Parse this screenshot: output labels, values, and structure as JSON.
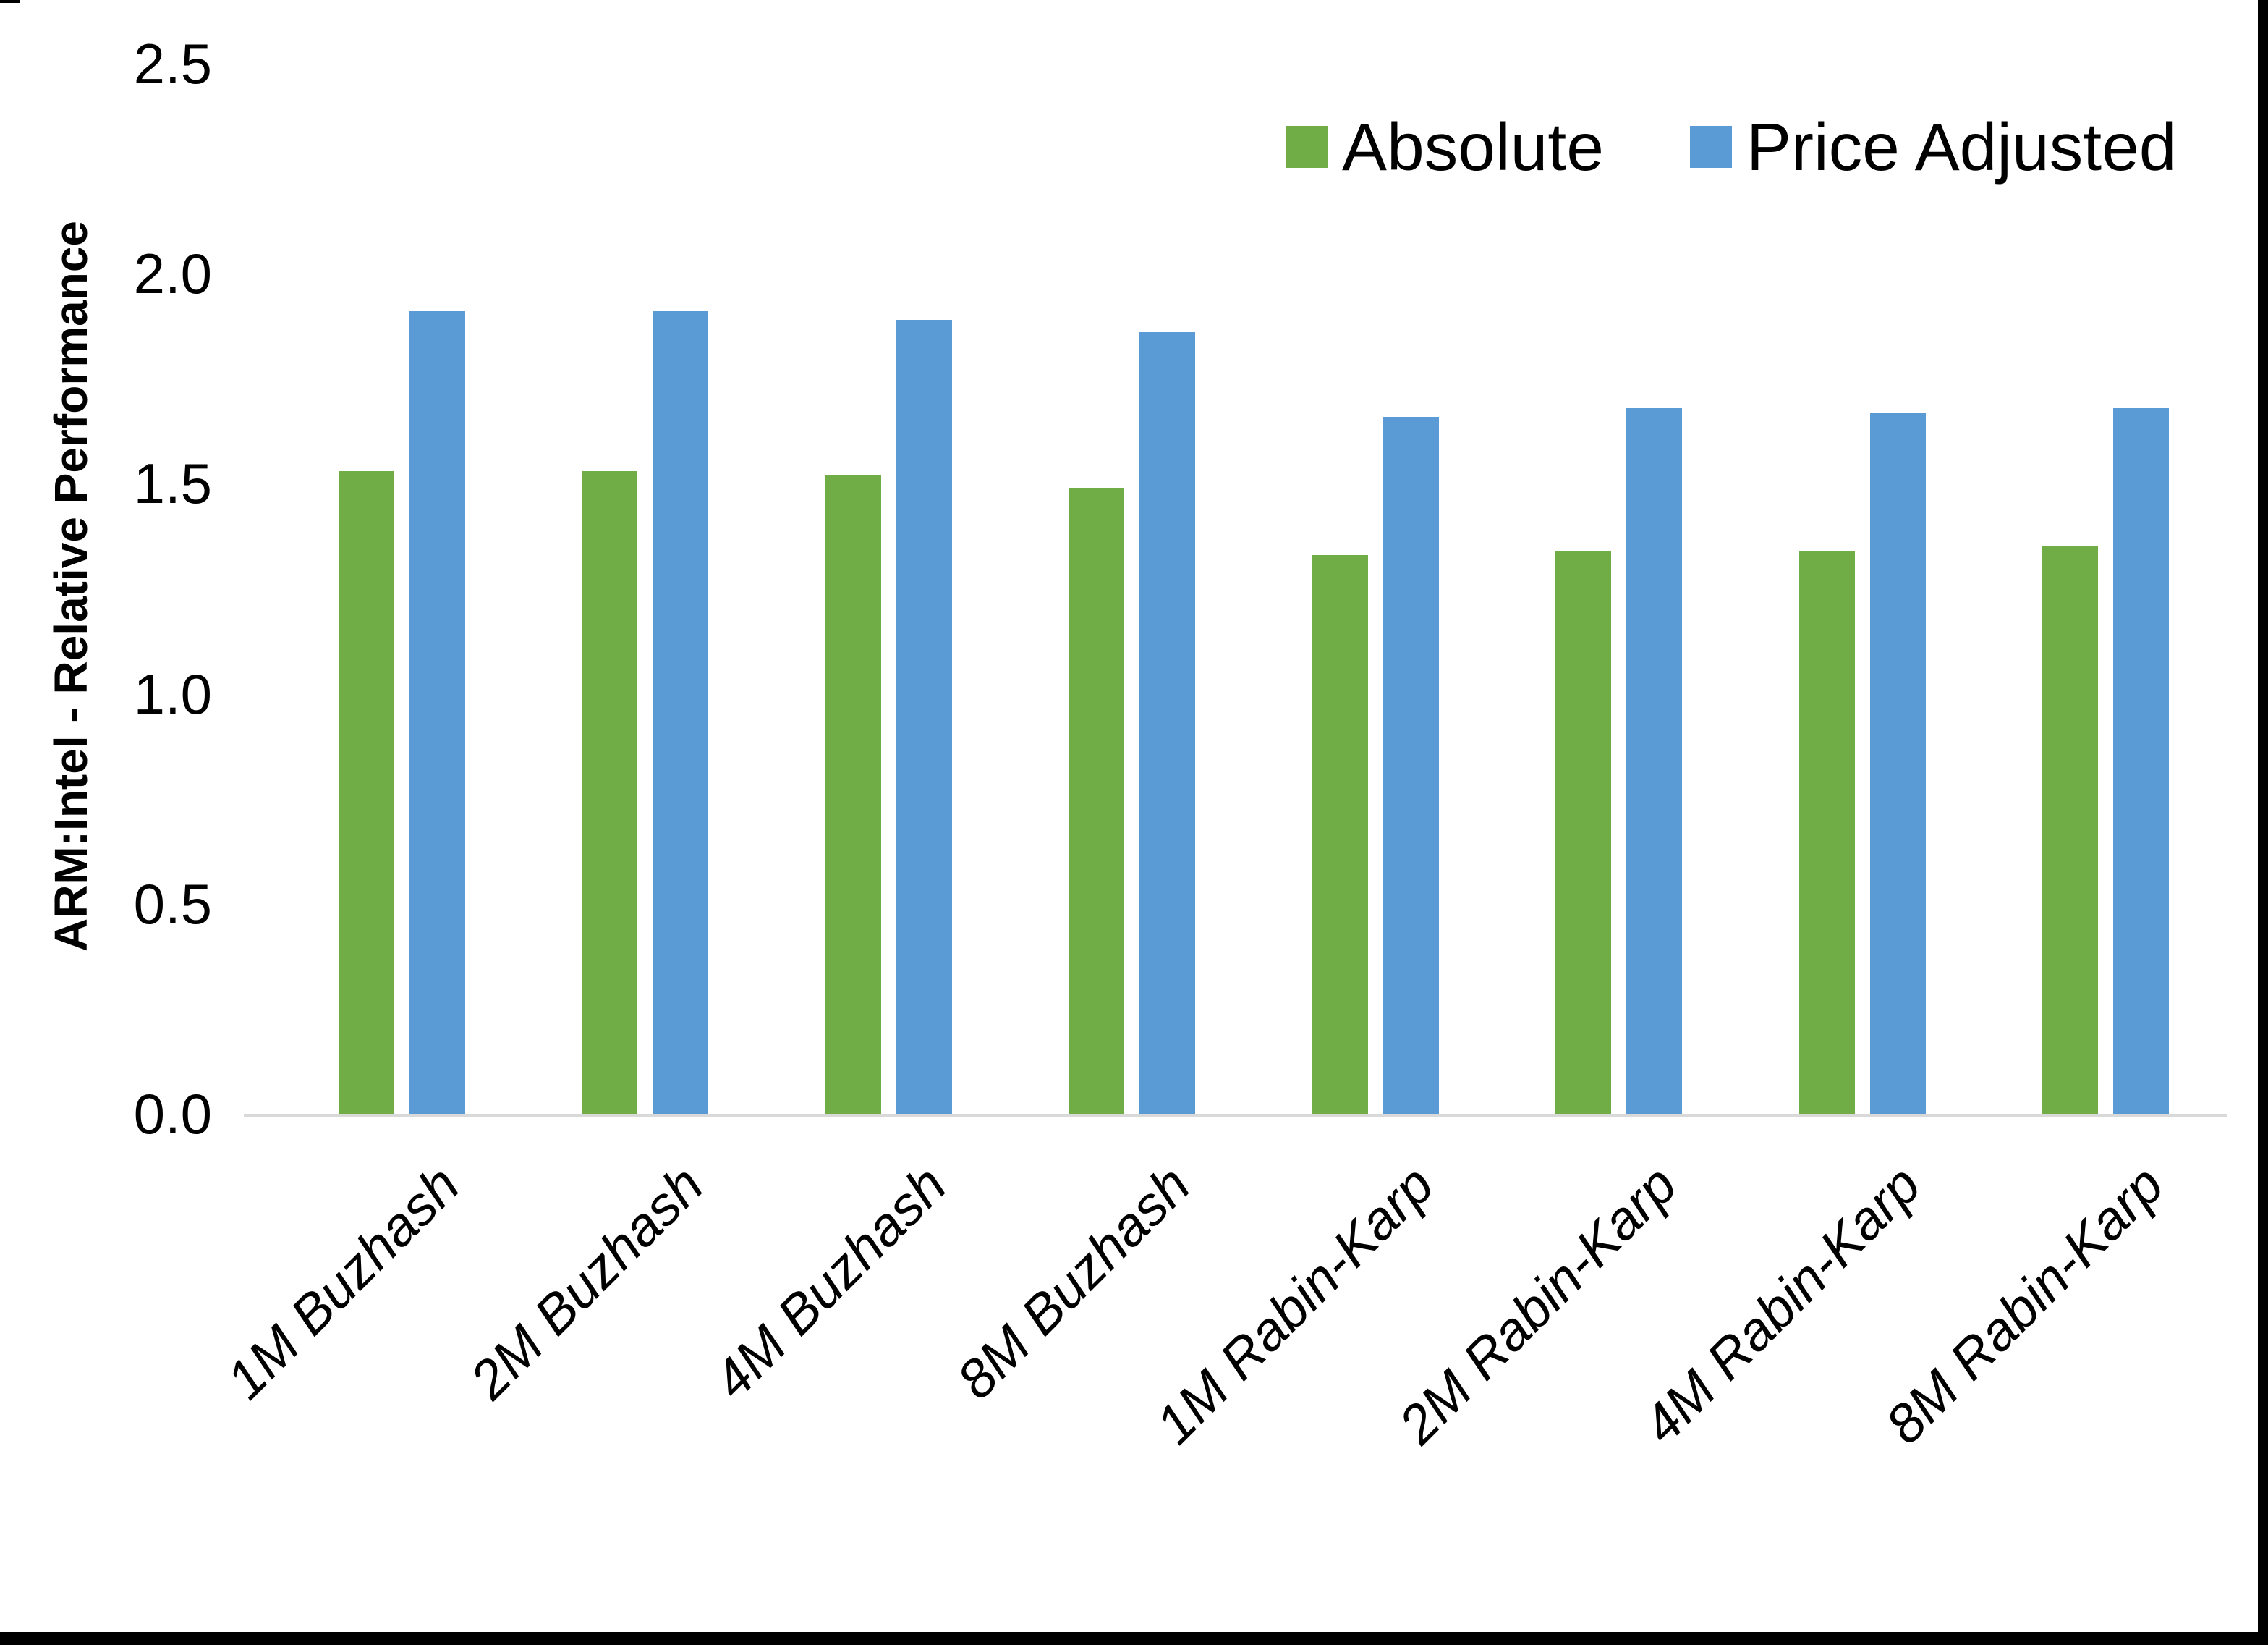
{
  "chart_data": {
    "type": "bar",
    "title": "",
    "xlabel": "",
    "ylabel": "ARM:Intel - Relative Performance",
    "ylim": [
      0,
      2.5
    ],
    "ytick_labels": [
      "0.0",
      "0.5",
      "1.0",
      "1.5",
      "2.0",
      "2.5"
    ],
    "grid": false,
    "legend_position": "top-right",
    "axis_line_color": "#d9d9d9",
    "categories": [
      "1M Buzhash",
      "2M Buzhash",
      "4M Buzhash",
      "8M Buzhash",
      "1M Rabin-Karp",
      "2M Rabin-Karp",
      "4M Rabin-Karp",
      "8M Rabin-Karp"
    ],
    "series": [
      {
        "name": "Absolute",
        "color": "#70AD47",
        "values": [
          1.53,
          1.53,
          1.52,
          1.49,
          1.33,
          1.34,
          1.34,
          1.35
        ]
      },
      {
        "name": "Price Adjusted",
        "color": "#5B9BD5",
        "values": [
          1.91,
          1.91,
          1.89,
          1.86,
          1.66,
          1.68,
          1.67,
          1.68
        ]
      }
    ]
  }
}
